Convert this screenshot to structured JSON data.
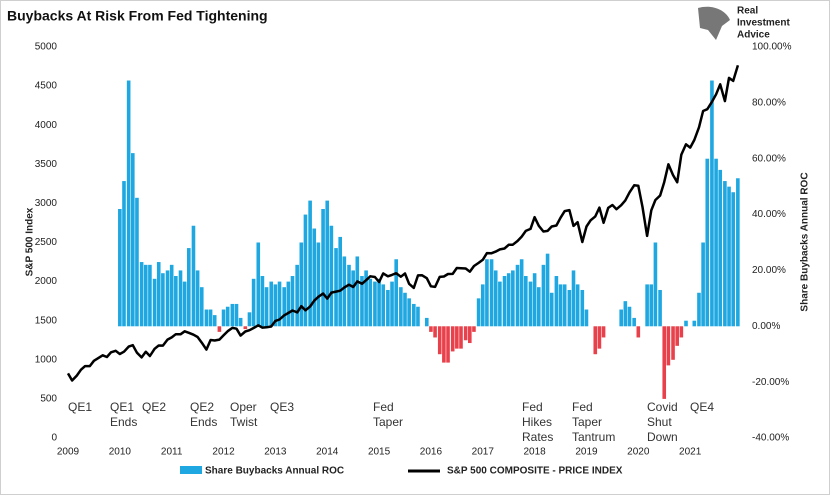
{
  "chart_data": {
    "type": "combo",
    "title": "Buybacks At Risk From Fed Tightening",
    "logo": [
      "Real",
      "Investment",
      "Advice"
    ],
    "ylabel": "S&P 500 Index",
    "y2label": "Share Buybacks Annual ROC",
    "xlim": [
      2009,
      2022
    ],
    "xticks": [
      2009,
      2010,
      2011,
      2012,
      2013,
      2014,
      2015,
      2016,
      2017,
      2018,
      2019,
      2020,
      2021
    ],
    "ylim": [
      0,
      5000
    ],
    "yticks": [
      0,
      500,
      1000,
      1500,
      2000,
      2500,
      3000,
      3500,
      4000,
      4500,
      5000
    ],
    "y2lim": [
      -40,
      100
    ],
    "y2ticks": [
      {
        "value": -40,
        "label": "-40.00%"
      },
      {
        "value": -20,
        "label": "-20.00%"
      },
      {
        "value": 0,
        "label": "0.00%"
      },
      {
        "value": 20,
        "label": "20.00%"
      },
      {
        "value": 40,
        "label": "40.00%"
      },
      {
        "value": 60,
        "label": "60.00%"
      },
      {
        "value": 80,
        "label": "80.00%"
      },
      {
        "value": 100,
        "label": "100.00%"
      }
    ],
    "x": [
      2009.0,
      2009.08,
      2009.17,
      2009.25,
      2009.33,
      2009.42,
      2009.5,
      2009.58,
      2009.67,
      2009.75,
      2009.83,
      2009.92,
      2010.0,
      2010.08,
      2010.17,
      2010.25,
      2010.33,
      2010.42,
      2010.5,
      2010.58,
      2010.67,
      2010.75,
      2010.83,
      2010.92,
      2011.0,
      2011.08,
      2011.17,
      2011.25,
      2011.33,
      2011.42,
      2011.5,
      2011.58,
      2011.67,
      2011.75,
      2011.83,
      2011.92,
      2012.0,
      2012.08,
      2012.17,
      2012.25,
      2012.33,
      2012.42,
      2012.5,
      2012.58,
      2012.67,
      2012.75,
      2012.83,
      2012.92,
      2013.0,
      2013.08,
      2013.17,
      2013.25,
      2013.33,
      2013.42,
      2013.5,
      2013.58,
      2013.67,
      2013.75,
      2013.83,
      2013.92,
      2014.0,
      2014.08,
      2014.17,
      2014.25,
      2014.33,
      2014.42,
      2014.5,
      2014.58,
      2014.67,
      2014.75,
      2014.83,
      2014.92,
      2015.0,
      2015.08,
      2015.17,
      2015.25,
      2015.33,
      2015.42,
      2015.5,
      2015.58,
      2015.67,
      2015.75,
      2015.83,
      2015.92,
      2016.0,
      2016.08,
      2016.17,
      2016.25,
      2016.33,
      2016.42,
      2016.5,
      2016.58,
      2016.67,
      2016.75,
      2016.83,
      2016.92,
      2017.0,
      2017.08,
      2017.17,
      2017.25,
      2017.33,
      2017.42,
      2017.5,
      2017.58,
      2017.67,
      2017.75,
      2017.83,
      2017.92,
      2018.0,
      2018.08,
      2018.17,
      2018.25,
      2018.33,
      2018.42,
      2018.5,
      2018.58,
      2018.67,
      2018.75,
      2018.83,
      2018.92,
      2019.0,
      2019.08,
      2019.17,
      2019.25,
      2019.33,
      2019.42,
      2019.5,
      2019.58,
      2019.67,
      2019.75,
      2019.83,
      2019.92,
      2020.0,
      2020.08,
      2020.17,
      2020.25,
      2020.33,
      2020.42,
      2020.5,
      2020.58,
      2020.67,
      2020.75,
      2020.83,
      2020.92,
      2021.0,
      2021.08,
      2021.17,
      2021.25,
      2021.33,
      2021.42,
      2021.5,
      2021.58,
      2021.67,
      2021.75,
      2021.83,
      2021.92
    ],
    "series": [
      {
        "name": "Share Buybacks Annual ROC",
        "type": "bar",
        "axis": "y2",
        "color": "#1ea7e0",
        "negative_color": "#e8414b",
        "values": [
          null,
          null,
          null,
          null,
          null,
          null,
          null,
          null,
          null,
          null,
          null,
          null,
          42,
          52,
          88,
          62,
          46,
          23,
          22,
          22,
          17,
          23,
          19,
          20,
          22,
          18,
          20,
          16,
          28,
          36,
          20,
          14,
          6,
          6,
          4,
          -2,
          6,
          7,
          8,
          8,
          3,
          -1,
          5,
          17,
          30,
          18,
          14,
          16,
          15,
          16,
          14,
          16,
          18,
          22,
          30,
          40,
          45,
          35,
          30,
          42,
          45,
          36,
          28,
          32,
          25,
          22,
          20,
          25,
          18,
          20,
          17,
          16,
          17,
          15,
          13,
          16,
          24,
          14,
          12,
          10,
          8,
          7,
          0,
          3,
          -2,
          -4,
          -10,
          -13,
          -13,
          -9,
          -8,
          -8,
          -5,
          -6,
          -2,
          10,
          15,
          24,
          24,
          20,
          16,
          18,
          19,
          20,
          22,
          24,
          18,
          16,
          19,
          14,
          22,
          26,
          12,
          18,
          15,
          15,
          13,
          20,
          15,
          13,
          6,
          0,
          -10,
          -8,
          -4,
          0,
          0,
          0,
          6,
          9,
          7,
          3,
          -4,
          0,
          15,
          15,
          30,
          13,
          -26,
          -14,
          -12,
          -7,
          -4,
          2,
          0,
          2,
          12,
          30,
          60,
          88,
          60,
          56,
          52,
          50,
          48,
          53
        ]
      },
      {
        "name": "S&P 500 COMPOSITE - PRICE INDEX",
        "type": "line",
        "color": "#000000",
        "values": [
          826,
          735,
          798,
          873,
          919,
          919,
          987,
          1021,
          1057,
          1036,
          1096,
          1115,
          1074,
          1104,
          1169,
          1187,
          1089,
          1031,
          1102,
          1049,
          1141,
          1183,
          1181,
          1258,
          1286,
          1327,
          1326,
          1364,
          1345,
          1321,
          1292,
          1219,
          1131,
          1253,
          1247,
          1258,
          1312,
          1366,
          1408,
          1398,
          1310,
          1362,
          1379,
          1407,
          1441,
          1412,
          1416,
          1426,
          1498,
          1515,
          1569,
          1598,
          1631,
          1606,
          1686,
          1633,
          1682,
          1757,
          1806,
          1848,
          1783,
          1859,
          1872,
          1884,
          1924,
          1960,
          1931,
          2003,
          1972,
          2018,
          2068,
          2059,
          1995,
          2105,
          2068,
          2086,
          2107,
          2063,
          2104,
          1972,
          1920,
          2079,
          2080,
          2044,
          1940,
          1932,
          2060,
          2065,
          2097,
          2099,
          2174,
          2171,
          2168,
          2126,
          2199,
          2239,
          2279,
          2364,
          2363,
          2384,
          2412,
          2423,
          2470,
          2472,
          2519,
          2575,
          2648,
          2674,
          2824,
          2714,
          2641,
          2648,
          2705,
          2718,
          2816,
          2902,
          2914,
          2712,
          2760,
          2507,
          2704,
          2784,
          2834,
          2946,
          2752,
          2942,
          2980,
          2926,
          2977,
          3038,
          3141,
          3231,
          3226,
          2954,
          2585,
          2912,
          3044,
          3100,
          3271,
          3500,
          3363,
          3270,
          3622,
          3756,
          3714,
          3811,
          3973,
          4181,
          4204,
          4298,
          4395,
          4523,
          4308,
          4605,
          4567,
          4766
        ]
      }
    ],
    "annotations": [
      [
        "QE1"
      ],
      [
        "QE1",
        "Ends"
      ],
      [
        "QE2"
      ],
      [
        "QE2",
        "Ends"
      ],
      [
        "Oper",
        "Twist"
      ],
      [
        "QE3"
      ],
      [
        "Fed",
        "Taper"
      ],
      [
        "Fed",
        "Hikes",
        "Rates"
      ],
      [
        "Fed",
        "Taper",
        "Tantrum"
      ],
      [
        "Covid",
        "Shut",
        "Down"
      ],
      [
        "QE4"
      ]
    ]
  }
}
